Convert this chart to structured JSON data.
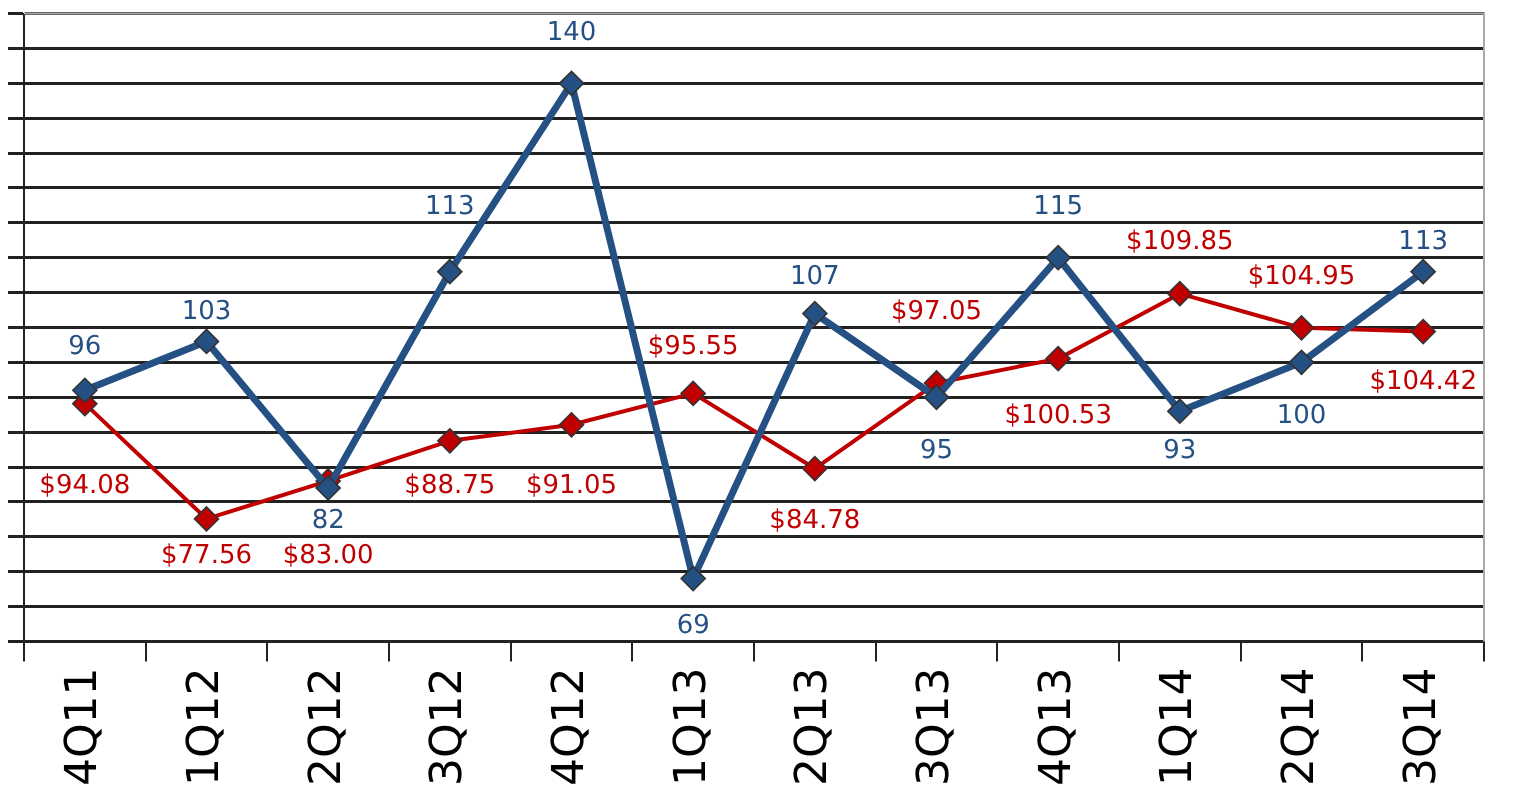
{
  "chart_data": {
    "type": "line",
    "categories": [
      "4Q11",
      "1Q12",
      "2Q12",
      "3Q12",
      "4Q12",
      "1Q13",
      "2Q13",
      "3Q13",
      "4Q13",
      "1Q14",
      "2Q14",
      "3Q14"
    ],
    "series": [
      {
        "color": "#255083",
        "values": [
          96,
          103,
          82,
          113,
          140,
          69,
          107,
          95,
          115,
          93,
          100,
          113
        ],
        "value_labels": [
          "96",
          "103",
          "82",
          "113",
          "140",
          "69",
          "107",
          "95",
          "115",
          "93",
          "100",
          "113"
        ]
      },
      {
        "color": "#c00000",
        "values": [
          94.08,
          77.56,
          83.0,
          88.75,
          91.05,
          95.55,
          84.78,
          97.05,
          100.53,
          109.85,
          104.95,
          104.42
        ],
        "value_labels": [
          "$94.08",
          "$77.56",
          "$83.00",
          "$88.75",
          "$91.05",
          "$95.55",
          "$84.78",
          "$97.05",
          "$100.53",
          "$109.85",
          "$104.95",
          "$104.42"
        ]
      }
    ],
    "ylim": [
      60,
      150
    ],
    "yticks": [
      {
        "value": 60,
        "label": null
      },
      {
        "value": 65,
        "label": null
      },
      {
        "value": 70,
        "label": null
      },
      {
        "value": 75,
        "label": null
      },
      {
        "value": 80,
        "label": null
      },
      {
        "value": 85,
        "label": null
      },
      {
        "value": 90,
        "label": null
      },
      {
        "value": 95,
        "label": null
      },
      {
        "value": 100,
        "label": null
      },
      {
        "value": 105,
        "label": null
      },
      {
        "value": 110,
        "label": null
      },
      {
        "value": 115,
        "label": null
      },
      {
        "value": 120,
        "label": null
      },
      {
        "value": 125,
        "label": null
      },
      {
        "value": 130,
        "label": null
      },
      {
        "value": 135,
        "label": null
      },
      {
        "value": 140,
        "label": null
      },
      {
        "value": 145,
        "label": null
      },
      {
        "value": 150,
        "label": null
      }
    ],
    "tick_labels": "x",
    "grid": "y",
    "marker": "diamond",
    "line_style": "solid"
  }
}
